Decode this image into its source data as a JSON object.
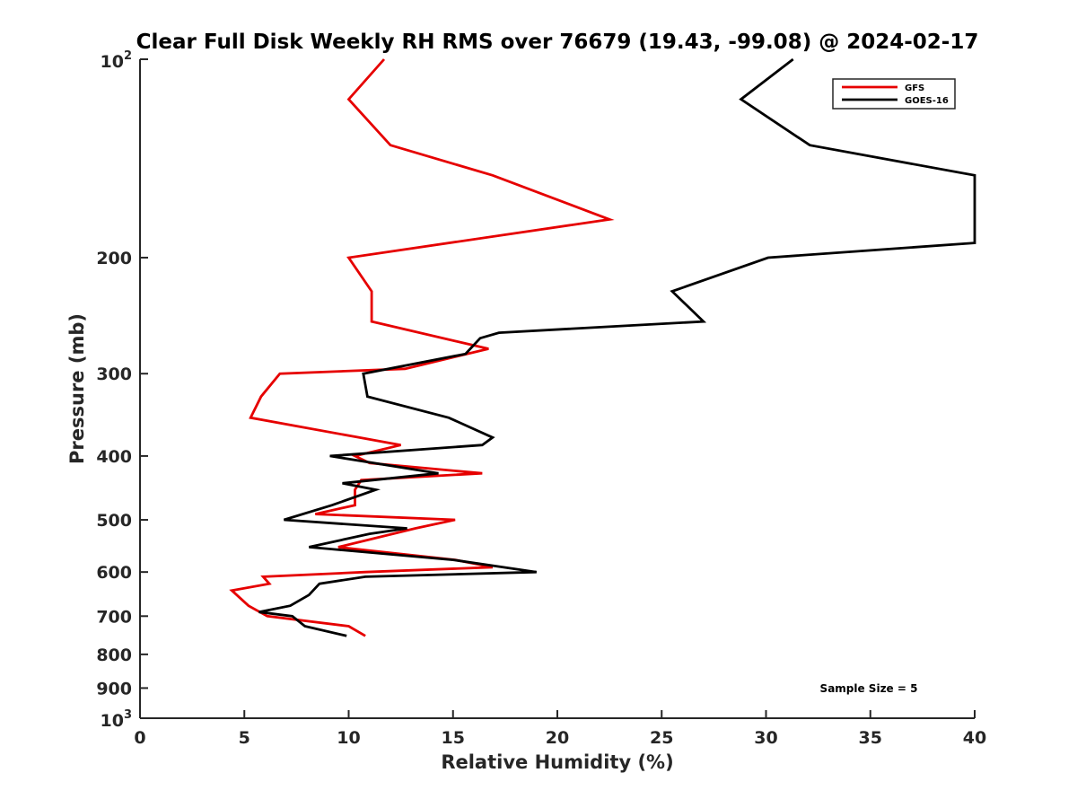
{
  "chart_data": {
    "type": "line",
    "title": "Clear Full Disk Weekly RH RMS over 76679 (19.43, -99.08) @ 2024-02-17",
    "xlabel": "Relative Humidity (%)",
    "ylabel": "Pressure (mb)",
    "xlim": [
      0,
      40
    ],
    "ylim": [
      100,
      1000
    ],
    "y_scale": "log",
    "y_reversed": true,
    "grid": false,
    "legend_position": "top-right",
    "x_ticks": [
      "0",
      "5",
      "10",
      "15",
      "20",
      "25",
      "30",
      "35",
      "40"
    ],
    "y_ticks": [
      {
        "value": 100,
        "base": "10",
        "exp": "2"
      },
      {
        "value": 200,
        "label": "200"
      },
      {
        "value": 300,
        "label": "300"
      },
      {
        "value": 400,
        "label": "400"
      },
      {
        "value": 500,
        "label": "500"
      },
      {
        "value": 600,
        "label": "600"
      },
      {
        "value": 700,
        "label": "700"
      },
      {
        "value": 800,
        "label": "800"
      },
      {
        "value": 900,
        "label": "900"
      },
      {
        "value": 1000,
        "base": "10",
        "exp": "3"
      }
    ],
    "annotation": "Sample Size = 5",
    "series": [
      {
        "name": "GFS",
        "color": "#e60000",
        "points": [
          [
            11.7,
            100
          ],
          [
            10.0,
            115
          ],
          [
            12.0,
            135
          ],
          [
            16.9,
            150
          ],
          [
            22.5,
            175
          ],
          [
            10.0,
            200
          ],
          [
            11.1,
            225
          ],
          [
            11.1,
            250
          ],
          [
            16.7,
            275
          ],
          [
            12.7,
            295
          ],
          [
            6.7,
            300
          ],
          [
            5.8,
            325
          ],
          [
            5.3,
            350
          ],
          [
            10.5,
            375
          ],
          [
            12.5,
            385
          ],
          [
            10.3,
            400
          ],
          [
            11.0,
            410
          ],
          [
            16.4,
            425
          ],
          [
            10.6,
            435
          ],
          [
            10.3,
            450
          ],
          [
            10.3,
            475
          ],
          [
            8.4,
            490
          ],
          [
            15.1,
            500
          ],
          [
            13.2,
            515
          ],
          [
            9.5,
            550
          ],
          [
            15.1,
            575
          ],
          [
            16.9,
            590
          ],
          [
            10.8,
            600
          ],
          [
            5.9,
            610
          ],
          [
            6.2,
            625
          ],
          [
            4.4,
            640
          ],
          [
            5.2,
            675
          ],
          [
            6.1,
            700
          ],
          [
            10.0,
            725
          ],
          [
            10.8,
            750
          ]
        ]
      },
      {
        "name": "GOES-16",
        "color": "#000000",
        "points": [
          [
            31.3,
            100
          ],
          [
            28.8,
            115
          ],
          [
            32.1,
            135
          ],
          [
            40.0,
            150
          ],
          [
            40.0,
            190
          ],
          [
            30.1,
            200
          ],
          [
            25.5,
            225
          ],
          [
            27.0,
            250
          ],
          [
            17.2,
            260
          ],
          [
            16.3,
            265
          ],
          [
            15.6,
            280
          ],
          [
            10.7,
            300
          ],
          [
            10.9,
            325
          ],
          [
            14.8,
            350
          ],
          [
            16.9,
            375
          ],
          [
            16.4,
            385
          ],
          [
            9.1,
            400
          ],
          [
            14.3,
            425
          ],
          [
            9.7,
            440
          ],
          [
            11.3,
            450
          ],
          [
            9.2,
            475
          ],
          [
            6.9,
            500
          ],
          [
            12.8,
            515
          ],
          [
            11.0,
            525
          ],
          [
            8.1,
            550
          ],
          [
            15.0,
            575
          ],
          [
            19.0,
            600
          ],
          [
            10.8,
            610
          ],
          [
            8.6,
            625
          ],
          [
            8.1,
            650
          ],
          [
            7.2,
            675
          ],
          [
            5.7,
            690
          ],
          [
            7.3,
            700
          ],
          [
            7.9,
            725
          ],
          [
            9.9,
            750
          ]
        ]
      }
    ]
  }
}
